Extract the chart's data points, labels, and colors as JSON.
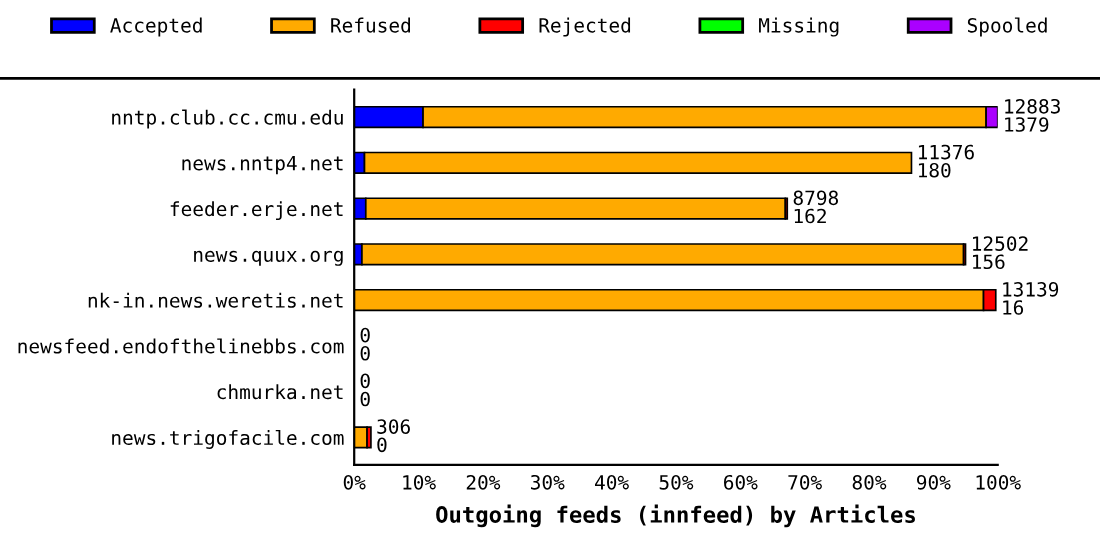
{
  "chart_data": {
    "type": "bar",
    "orientation": "horizontal",
    "stacked": true,
    "xlabel": "Outgoing feeds (innfeed) by Articles",
    "categories": [
      "nntp.club.cc.cmu.edu",
      "news.nntp4.net",
      "feeder.erje.net",
      "news.quux.org",
      "nk-in.news.weretis.net",
      "newsfeed.endofthelinebbs.com",
      "chmurka.net",
      "news.trigofacile.com"
    ],
    "series": [
      {
        "name": "Accepted",
        "color": "#0000ff",
        "values": [
          10.7,
          1.6,
          1.8,
          1.2,
          null,
          0,
          0,
          0
        ]
      },
      {
        "name": "Refused",
        "color": "#ffaa00",
        "values": [
          87.5,
          85.0,
          65.2,
          93.5,
          97.8,
          0,
          0,
          2.0
        ]
      },
      {
        "name": "Rejected",
        "color": "#ff0000",
        "values": [
          0,
          0,
          0.3,
          0.3,
          1.9,
          0,
          0,
          0.6
        ]
      },
      {
        "name": "Missing",
        "color": "#00ff00",
        "values": [
          0,
          0,
          0,
          0,
          0,
          0,
          0,
          0
        ]
      },
      {
        "name": "Spooled",
        "color": "#aa00ff",
        "values": [
          1.8,
          0,
          0,
          0,
          0,
          0,
          0,
          0
        ]
      }
    ],
    "value_labels": [
      "12883\n1379",
      "11376\n180",
      "8798\n162",
      "12502\n156",
      "13139\n16",
      "0\n0",
      "0\n0",
      "306\n0"
    ],
    "xlim": [
      0,
      100
    ],
    "xticks": [
      {
        "value": 0,
        "label": "0%"
      },
      {
        "value": 10,
        "label": "10%"
      },
      {
        "value": 20,
        "label": "20%"
      },
      {
        "value": 30,
        "label": "30%"
      },
      {
        "value": 40,
        "label": "40%"
      },
      {
        "value": 50,
        "label": "50%"
      },
      {
        "value": 60,
        "label": "60%"
      },
      {
        "value": 70,
        "label": "70%"
      },
      {
        "value": 80,
        "label": "80%"
      },
      {
        "value": 90,
        "label": "90%"
      },
      {
        "value": 100,
        "label": "100%"
      }
    ],
    "grid": false,
    "legend": "top"
  }
}
